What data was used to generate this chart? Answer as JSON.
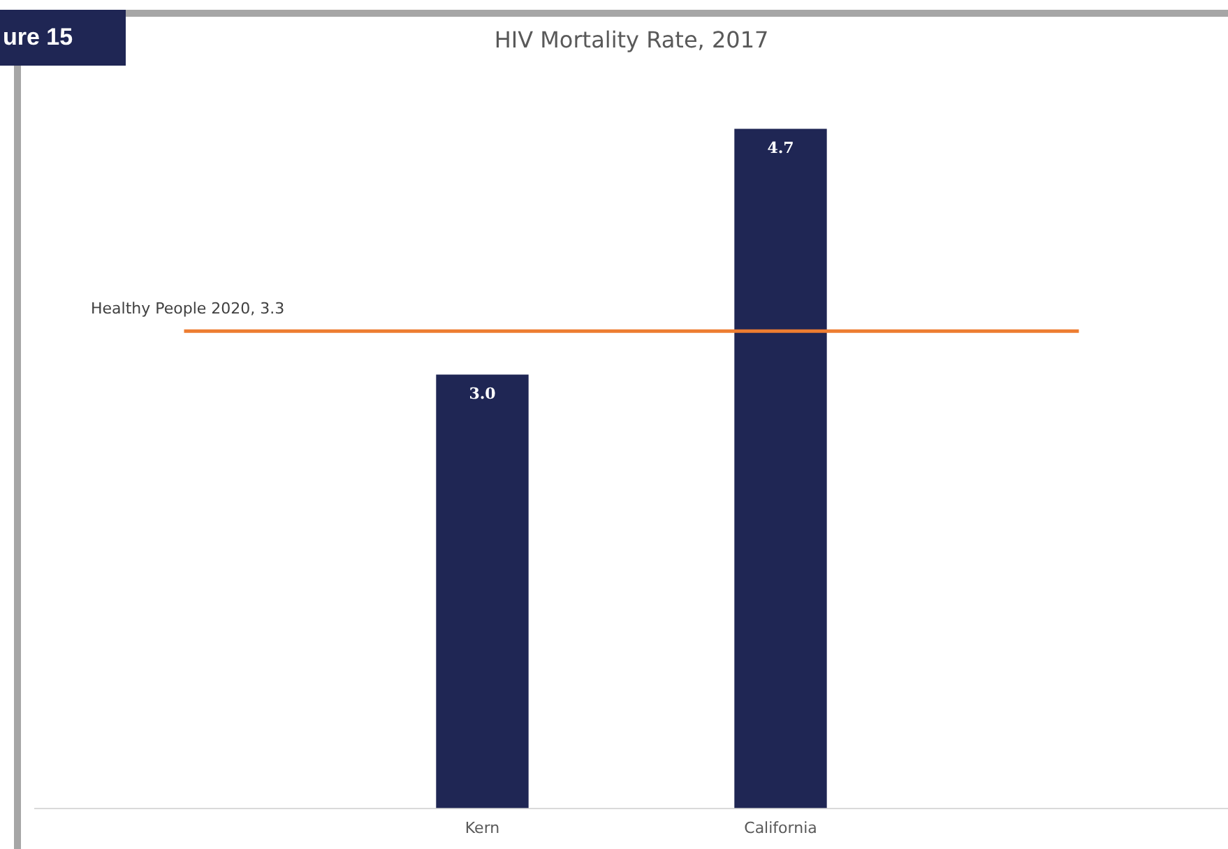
{
  "chart_data": {
    "type": "bar",
    "title": "HIV Mortality Rate, 2017",
    "categories": [
      null,
      "Kern",
      "California",
      null
    ],
    "values": [
      null,
      3.0,
      4.7,
      null
    ],
    "color": "#1f2654",
    "value_labels": [
      null,
      "3.0",
      "4.7",
      null
    ],
    "ref_lines": [
      {
        "axis": "y",
        "value": 3.3,
        "label": "Healthy People 2020, 3.3",
        "color": "#ed7d31"
      }
    ],
    "annotations": [
      "ure 15"
    ],
    "grid": false,
    "legend": false
  }
}
